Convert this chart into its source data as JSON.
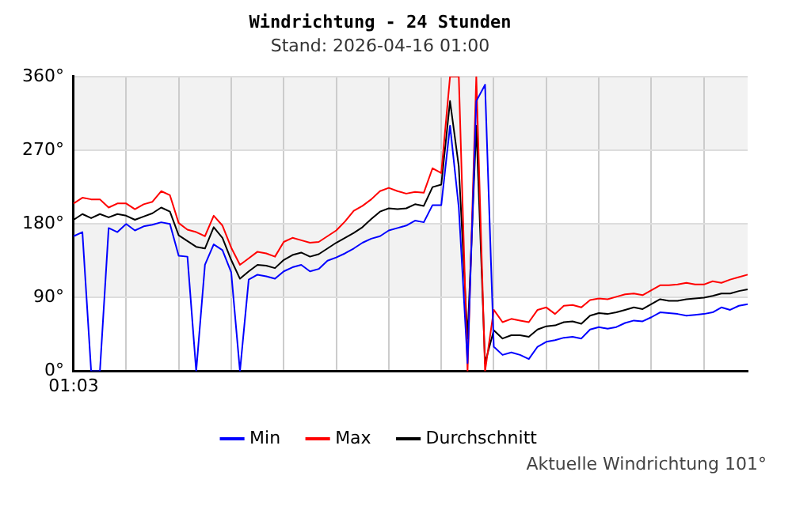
{
  "chart_data": {
    "type": "line",
    "title": "Windrichtung - 24 Stunden",
    "subtitle": "Stand: 2026-04-16 01:00",
    "annotations": [
      "Aktuelle Windrichtung 101°"
    ],
    "categories": [
      "01:03",
      null,
      null,
      null,
      null,
      null,
      null,
      null,
      null,
      null,
      null,
      null,
      null,
      null,
      null,
      null,
      null,
      null,
      null,
      null,
      null,
      null,
      null,
      null,
      null,
      null,
      null,
      null,
      null,
      null,
      null,
      null,
      null,
      null,
      null,
      null,
      null,
      null,
      null,
      null,
      null,
      null,
      null,
      null,
      null,
      null,
      null,
      null,
      null,
      null,
      null,
      null,
      null,
      null,
      null,
      null,
      null,
      null,
      null,
      null,
      null,
      null,
      null,
      null,
      null,
      null,
      null,
      null,
      null,
      null,
      null,
      null,
      null,
      null,
      null,
      null,
      null,
      null
    ],
    "series": [
      {
        "name": "Min",
        "color": "#0000ff",
        "values": [
          165,
          170,
          0,
          0,
          175,
          170,
          180,
          172,
          177,
          179,
          182,
          180,
          141,
          140,
          0,
          130,
          155,
          148,
          121,
          0,
          112,
          118,
          116,
          113,
          122,
          127,
          130,
          122,
          125,
          135,
          139,
          144,
          150,
          157,
          162,
          165,
          172,
          175,
          178,
          184,
          182,
          203,
          203,
          300,
          200,
          10,
          330,
          350,
          30,
          20,
          23,
          20,
          15,
          30,
          36,
          38,
          41,
          42,
          40,
          51,
          54,
          52,
          54,
          59,
          62,
          61,
          66,
          72,
          71,
          70,
          68,
          69,
          70,
          72,
          78,
          75,
          80,
          82
        ]
      },
      {
        "name": "Max",
        "color": "#ff0000",
        "values": [
          205,
          212,
          210,
          210,
          200,
          205,
          205,
          198,
          204,
          207,
          220,
          215,
          181,
          173,
          170,
          165,
          190,
          178,
          151,
          130,
          138,
          146,
          144,
          140,
          158,
          163,
          160,
          157,
          158,
          165,
          172,
          183,
          196,
          202,
          210,
          220,
          224,
          220,
          217,
          219,
          218,
          248,
          242,
          360,
          360,
          0,
          360,
          0,
          75,
          60,
          64,
          62,
          60,
          75,
          78,
          70,
          80,
          81,
          78,
          87,
          89,
          88,
          91,
          94,
          95,
          93,
          99,
          105,
          105,
          106,
          108,
          106,
          106,
          110,
          108,
          112,
          115,
          118
        ]
      },
      {
        "name": "Durchschnitt",
        "color": "#000000",
        "values": [
          185,
          192,
          187,
          192,
          188,
          192,
          190,
          185,
          189,
          193,
          200,
          195,
          166,
          159,
          152,
          150,
          176,
          163,
          136,
          113,
          122,
          130,
          129,
          126,
          136,
          142,
          145,
          140,
          143,
          150,
          157,
          163,
          169,
          176,
          186,
          195,
          199,
          198,
          199,
          204,
          202,
          225,
          228,
          330,
          250,
          40,
          300,
          10,
          50,
          40,
          44,
          44,
          42,
          51,
          55,
          56,
          60,
          61,
          58,
          68,
          71,
          70,
          72,
          75,
          78,
          76,
          82,
          88,
          86,
          86,
          88,
          89,
          90,
          92,
          95,
          95,
          98,
          100
        ]
      }
    ],
    "ylim": [
      0,
      360
    ],
    "yticks": [
      {
        "value": 0,
        "label": "0°"
      },
      {
        "value": 90,
        "label": "90°"
      },
      {
        "value": 180,
        "label": "180°"
      },
      {
        "value": 270,
        "label": "270°"
      },
      {
        "value": 360,
        "label": "360°"
      }
    ],
    "bands": [
      {
        "axis": "y",
        "from": 90,
        "to": 180,
        "color": "#f2f2f2"
      },
      {
        "axis": "y",
        "from": 270,
        "to": 360,
        "color": "#f2f2f2"
      }
    ],
    "grid": true,
    "legend": "bottom",
    "marker": "none",
    "line_style": "solid"
  }
}
